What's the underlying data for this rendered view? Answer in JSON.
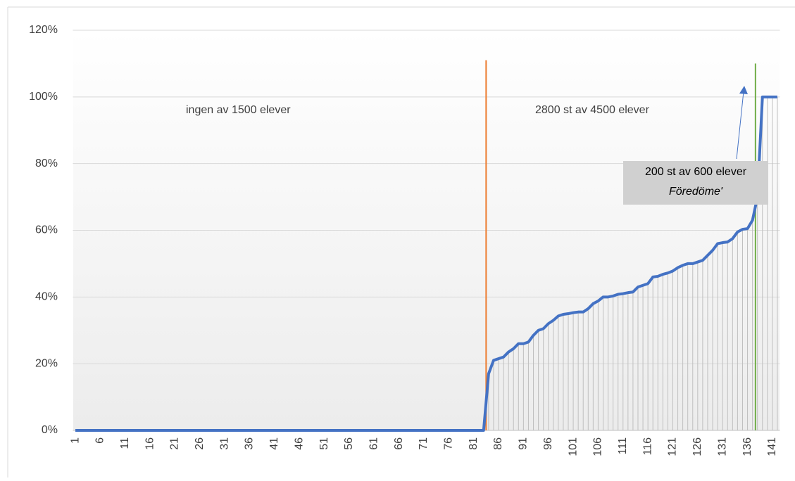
{
  "chart_data": {
    "type": "line",
    "categories": [
      1,
      null,
      null,
      null,
      null,
      6,
      null,
      null,
      null,
      null,
      11,
      null,
      null,
      null,
      null,
      16,
      null,
      null,
      null,
      null,
      21,
      null,
      null,
      null,
      null,
      26,
      null,
      null,
      null,
      null,
      31,
      null,
      null,
      null,
      null,
      36,
      null,
      null,
      null,
      null,
      41,
      null,
      null,
      null,
      null,
      46,
      null,
      null,
      null,
      null,
      51,
      null,
      null,
      null,
      null,
      56,
      null,
      null,
      null,
      null,
      61,
      null,
      null,
      null,
      null,
      66,
      null,
      null,
      null,
      null,
      71,
      null,
      null,
      null,
      null,
      76,
      null,
      null,
      null,
      null,
      81,
      null,
      null,
      null,
      null,
      86,
      null,
      null,
      null,
      null,
      91,
      null,
      null,
      null,
      null,
      96,
      null,
      null,
      null,
      null,
      101,
      null,
      null,
      null,
      null,
      106,
      null,
      null,
      null,
      null,
      111,
      null,
      null,
      null,
      null,
      116,
      null,
      null,
      null,
      null,
      121,
      null,
      null,
      null,
      null,
      126,
      null,
      null,
      null,
      null,
      131,
      null,
      null,
      null,
      null,
      136,
      null,
      null,
      null,
      null,
      141,
      null
    ],
    "series": [
      {
        "color": "#4472c4",
        "values": [
          0,
          0,
          0,
          0,
          0,
          0,
          0,
          0,
          0,
          0,
          0,
          0,
          0,
          0,
          0,
          0,
          0,
          0,
          0,
          0,
          0,
          0,
          0,
          0,
          0,
          0,
          0,
          0,
          0,
          0,
          0,
          0,
          0,
          0,
          0,
          0,
          0,
          0,
          0,
          0,
          0,
          0,
          0,
          0,
          0,
          0,
          0,
          0,
          0,
          0,
          0,
          0,
          0,
          0,
          0,
          0,
          0,
          0,
          0,
          0,
          0,
          0,
          0,
          0,
          0,
          0,
          0,
          0,
          0,
          0,
          0,
          0,
          0,
          0,
          0,
          0,
          0,
          0,
          0,
          0,
          0,
          0,
          0,
          17,
          21,
          21.5,
          22,
          23.5,
          24.5,
          26,
          26,
          26.5,
          28.5,
          30,
          30.5,
          32,
          33,
          34.3,
          34.8,
          35,
          35.3,
          35.5,
          35.5,
          36.5,
          38,
          38.8,
          40,
          40,
          40.3,
          40.8,
          41,
          41.3,
          41.5,
          43,
          43.5,
          44,
          46,
          46.2,
          46.8,
          47.2,
          47.8,
          48.8,
          49.5,
          50,
          50,
          50.5,
          51,
          52.5,
          54,
          56,
          56.3,
          56.5,
          57.5,
          59.5,
          60.3,
          60.5,
          63,
          70,
          100,
          100,
          100,
          100
        ]
      }
    ],
    "ylim": [
      0,
      120
    ],
    "yticks": [
      {
        "value": 0,
        "label": "0%"
      },
      {
        "value": 20,
        "label": "20%"
      },
      {
        "value": 40,
        "label": "40%"
      },
      {
        "value": 60,
        "label": "60%"
      },
      {
        "value": 80,
        "label": "80%"
      },
      {
        "value": 100,
        "label": "100%"
      },
      {
        "value": 120,
        "label": "120%"
      }
    ],
    "grid": true,
    "vlines": [
      {
        "category": 83.5,
        "top": 111,
        "color": "#ed7d31"
      },
      {
        "category": 137.6,
        "top": 110,
        "color": "#70ad47"
      }
    ],
    "annotations": [
      "ingen av 1500 elever",
      "2800 st av 4500 elever",
      "200 st av 600 elever",
      "Föredöme'"
    ]
  }
}
